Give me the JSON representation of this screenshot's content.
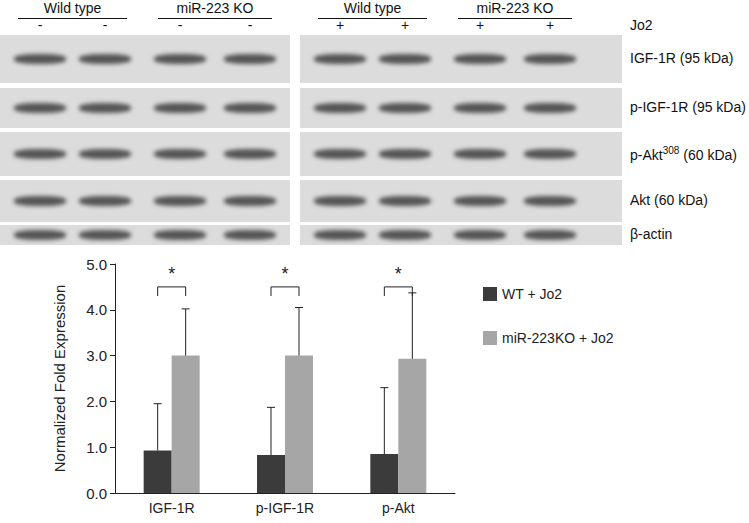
{
  "blot": {
    "treatment": "Jo2",
    "panels": [
      {
        "groups": [
          "Wild type",
          "miR-223 KO"
        ],
        "lanes": [
          "-",
          "-",
          "-",
          "-"
        ]
      },
      {
        "groups": [
          "Wild type",
          "miR-223 KO"
        ],
        "lanes": [
          "+",
          "+",
          "+",
          "+"
        ]
      }
    ],
    "rows": [
      {
        "label": "IGF-1R (95 kDa)"
      },
      {
        "label": "p-IGF-1R (95 kDa)"
      },
      {
        "label": "p-Akt",
        "superscript": "308",
        "suffix": " (60 kDa)"
      },
      {
        "label": "Akt (60 kDa)"
      },
      {
        "label": "β-actin"
      }
    ]
  },
  "chart_data": {
    "type": "bar",
    "categories": [
      "IGF-1R",
      "p-IGF-1R",
      "p-Akt"
    ],
    "series": [
      {
        "name": "WT + Jo2",
        "color": "#3b3b3b",
        "values": [
          0.93,
          0.83,
          0.85
        ],
        "errors": [
          1.02,
          1.04,
          1.45
        ]
      },
      {
        "name": "miR-223KO + Jo2",
        "color": "#a6a6a6",
        "values": [
          3.0,
          3.0,
          2.93
        ],
        "errors": [
          1.02,
          1.05,
          1.44
        ]
      }
    ],
    "ylabel": "Normalized Fold Expression",
    "ylim": [
      0,
      5
    ],
    "yticks": [
      {
        "value": 0,
        "label": "0.0"
      },
      {
        "value": 1,
        "label": "1.0"
      },
      {
        "value": 2,
        "label": "2.0"
      },
      {
        "value": 3,
        "label": "3.0"
      },
      {
        "value": 4,
        "label": "4.0"
      },
      {
        "value": 5,
        "label": "5.0"
      }
    ],
    "annotations": [
      {
        "category": "IGF-1R",
        "text": "*"
      },
      {
        "category": "p-IGF-1R",
        "text": "*"
      },
      {
        "category": "p-Akt",
        "text": "*"
      }
    ],
    "grid": false,
    "legend": "right"
  }
}
